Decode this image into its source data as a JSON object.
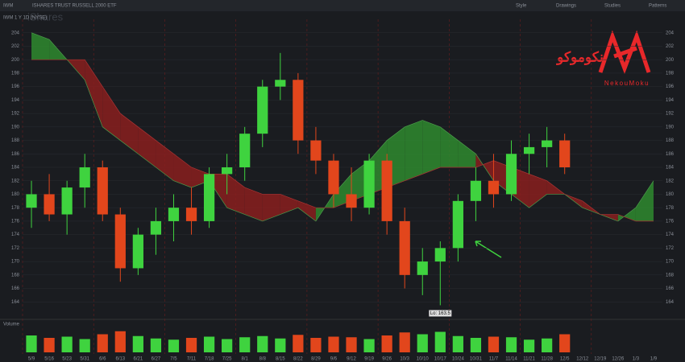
{
  "ui": {
    "symbol": "IWM",
    "description": "ISHARES TRUST RUSSELL 2000 ETF",
    "chart_label": "IWM 1 Y 1D (NYSE)",
    "watermark": "iShares",
    "menu": [
      "Style",
      "Drawings",
      "Studies",
      "Patterns"
    ],
    "volume_label": "Volume",
    "logo_fa": "نکوموکو",
    "logo_en": "NekouMoku"
  },
  "chart_data": [
    {
      "type": "candlestick",
      "annotation": {
        "text": "Lo: 163.5",
        "value": 163.5
      },
      "categories": [
        "5/9",
        "5/16",
        "5/23",
        "5/31",
        "6/6",
        "6/13",
        "6/21",
        "6/27",
        "7/5",
        "7/11",
        "7/18",
        "7/25",
        "8/1",
        "8/8",
        "8/15",
        "8/22",
        "8/29",
        "9/6",
        "9/12",
        "9/19",
        "9/26",
        "10/3",
        "10/10",
        "10/17",
        "10/24",
        "10/31",
        "11/7",
        "11/14",
        "11/21",
        "11/28",
        "12/5",
        "12/12",
        "12/19",
        "12/26",
        "1/3",
        "1/9"
      ],
      "open": [
        178,
        180,
        177,
        181,
        184,
        177,
        169,
        174,
        176,
        178,
        176,
        183,
        184,
        189,
        196,
        197,
        188,
        185,
        180,
        178,
        185,
        176,
        168,
        170,
        172,
        179,
        182,
        180,
        186,
        187,
        188,
        null,
        null,
        null,
        null,
        null
      ],
      "high": [
        182,
        183,
        182,
        186,
        185,
        178,
        175,
        178,
        180,
        181,
        184,
        186,
        190,
        197,
        201,
        198,
        190,
        186,
        184,
        186,
        186,
        178,
        172,
        173,
        180,
        184,
        186,
        188,
        189,
        190,
        189,
        null,
        null,
        null,
        null,
        null
      ],
      "low": [
        175,
        176,
        174,
        178,
        176,
        167,
        168,
        171,
        173,
        174,
        175,
        180,
        182,
        187,
        194,
        186,
        183,
        178,
        176,
        177,
        174,
        166,
        165,
        163.5,
        170,
        176,
        178,
        179,
        183,
        184,
        183,
        null,
        null,
        null,
        null,
        null
      ],
      "close": [
        180,
        177,
        181,
        184,
        177,
        169,
        174,
        176,
        178,
        176,
        183,
        184,
        189,
        196,
        197,
        188,
        185,
        180,
        178,
        185,
        176,
        168,
        170,
        172,
        179,
        182,
        180,
        186,
        187,
        188,
        184,
        null,
        null,
        null,
        null,
        null
      ],
      "up_color": "#3fd33f",
      "down_color": "#e2461c",
      "cloud": {
        "span_a": [
          204,
          203,
          200,
          197,
          190,
          188,
          186,
          184,
          182,
          181,
          182,
          178,
          177,
          176,
          177,
          178,
          176,
          180,
          183,
          185,
          188,
          190,
          191,
          190,
          188,
          186,
          182,
          180,
          178,
          180,
          180,
          178,
          177,
          176,
          178,
          182
        ],
        "span_b": [
          200,
          200,
          200,
          200,
          196,
          192,
          190,
          188,
          186,
          184,
          183,
          183,
          181,
          180,
          180,
          179,
          178,
          178,
          179,
          180,
          181,
          182,
          183,
          184,
          184,
          184,
          185,
          184,
          183,
          182,
          180,
          179,
          177,
          177,
          176,
          176
        ],
        "bull_color": "#2f8a2f",
        "bear_color": "#8a1e1e"
      },
      "ylim": [
        162,
        206
      ],
      "yticks": [
        164,
        166,
        168,
        170,
        172,
        174,
        176,
        178,
        180,
        182,
        184,
        186,
        188,
        190,
        192,
        194,
        196,
        198,
        200,
        202,
        204
      ]
    },
    {
      "type": "bar",
      "values": [
        28,
        24,
        26,
        22,
        30,
        35,
        27,
        23,
        21,
        24,
        26,
        22,
        25,
        27,
        23,
        29,
        24,
        26,
        25,
        22,
        28,
        33,
        30,
        34,
        27,
        24,
        26,
        25,
        21,
        23,
        30,
        null,
        null,
        null,
        null,
        null
      ],
      "ylim": [
        0,
        40
      ]
    }
  ]
}
